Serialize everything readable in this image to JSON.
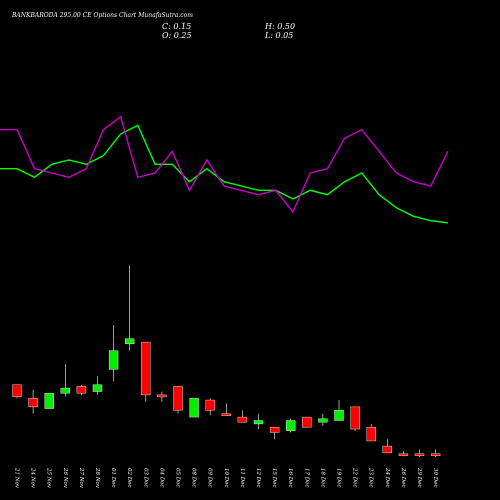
{
  "header": {
    "title": "BANKBARODA 295.00 CE Options Chart MunafaSutra.com",
    "open": "O: 0.25",
    "close": "C: 0.15",
    "high": "H: 0.50",
    "low": "L: 0.05"
  },
  "colors": {
    "background": "#000000",
    "bullish": "#00ee00",
    "bearish": "#ff0000",
    "ma_fast": "#00ff00",
    "ma_slow": "#cc00cc",
    "wick": "#ffffff",
    "label": "#ffffff"
  },
  "chart_data": {
    "type": "candlestick",
    "title": "BANKBARODA 295.00 CE Options Chart MunafaSutra.com",
    "categories": [
      "21 Nov",
      "24 Nov",
      "25 Nov",
      "26 Nov",
      "27 Nov",
      "28 Nov",
      "01 Dec",
      "02 Dec",
      "03 Dec",
      "04 Dec",
      "05 Dec",
      "08 Dec",
      "09 Dec",
      "10 Dec",
      "11 Dec",
      "12 Dec",
      "15 Dec",
      "16 Dec",
      "17 Dec",
      "18 Dec",
      "19 Dec",
      "22 Dec",
      "23 Dec",
      "24 Dec",
      "26 Dec",
      "29 Dec",
      "30 Dec"
    ],
    "candles": [
      {
        "open": 4.3,
        "high": 4.3,
        "low": 3.5,
        "close": 3.6
      },
      {
        "open": 3.5,
        "high": 4.0,
        "low": 2.6,
        "close": 3.0
      },
      {
        "open": 2.9,
        "high": 3.8,
        "low": 2.9,
        "close": 3.8
      },
      {
        "open": 3.8,
        "high": 5.5,
        "low": 3.6,
        "close": 4.1
      },
      {
        "open": 4.2,
        "high": 4.3,
        "low": 3.7,
        "close": 3.8
      },
      {
        "open": 3.9,
        "high": 4.8,
        "low": 3.7,
        "close": 4.3
      },
      {
        "open": 5.2,
        "high": 7.8,
        "low": 4.5,
        "close": 6.3
      },
      {
        "open": 6.7,
        "high": 11.3,
        "low": 6.3,
        "close": 7.0
      },
      {
        "open": 6.8,
        "high": 6.8,
        "low": 3.3,
        "close": 3.7
      },
      {
        "open": 3.7,
        "high": 3.9,
        "low": 3.3,
        "close": 3.6
      },
      {
        "open": 4.2,
        "high": 4.2,
        "low": 2.6,
        "close": 2.8
      },
      {
        "open": 2.4,
        "high": 3.5,
        "low": 2.4,
        "close": 3.5
      },
      {
        "open": 3.4,
        "high": 3.5,
        "low": 2.5,
        "close": 2.8
      },
      {
        "open": 2.6,
        "high": 3.2,
        "low": 2.5,
        "close": 2.5
      },
      {
        "open": 2.4,
        "high": 2.8,
        "low": 2.1,
        "close": 2.1
      },
      {
        "open": 2.0,
        "high": 2.6,
        "low": 1.7,
        "close": 2.2
      },
      {
        "open": 1.8,
        "high": 1.8,
        "low": 1.1,
        "close": 1.5
      },
      {
        "open": 1.6,
        "high": 2.3,
        "low": 1.5,
        "close": 2.2
      },
      {
        "open": 2.4,
        "high": 2.4,
        "low": 1.8,
        "close": 1.8
      },
      {
        "open": 2.1,
        "high": 2.6,
        "low": 1.9,
        "close": 2.3
      },
      {
        "open": 2.2,
        "high": 3.4,
        "low": 2.2,
        "close": 2.8
      },
      {
        "open": 3.0,
        "high": 3.0,
        "low": 1.6,
        "close": 1.7
      },
      {
        "open": 1.8,
        "high": 2.0,
        "low": 1.0,
        "close": 1.0
      },
      {
        "open": 0.7,
        "high": 1.1,
        "low": 0.3,
        "close": 0.3
      },
      {
        "open": 0.25,
        "high": 0.4,
        "low": 0.1,
        "close": 0.15
      },
      {
        "open": 0.25,
        "high": 0.5,
        "low": 0.05,
        "close": 0.15
      },
      {
        "open": 0.25,
        "high": 0.5,
        "low": 0.05,
        "close": 0.15
      }
    ],
    "ma_series": [
      {
        "values": [
          24,
          24,
          26,
          23,
          22,
          23,
          21,
          16,
          14,
          23,
          23,
          27,
          24,
          27,
          28,
          29,
          29,
          31,
          29,
          30,
          27,
          25,
          30,
          33,
          35,
          36,
          36.5
        ]
      },
      {
        "values": [
          15,
          15,
          24,
          25,
          26,
          24,
          15,
          12,
          26,
          25,
          20,
          29,
          22,
          28,
          29,
          30,
          29,
          34,
          25,
          24,
          17,
          15,
          20,
          25,
          27,
          28,
          20
        ]
      }
    ],
    "ylim": [
      0,
      11.5
    ],
    "grid": false
  }
}
